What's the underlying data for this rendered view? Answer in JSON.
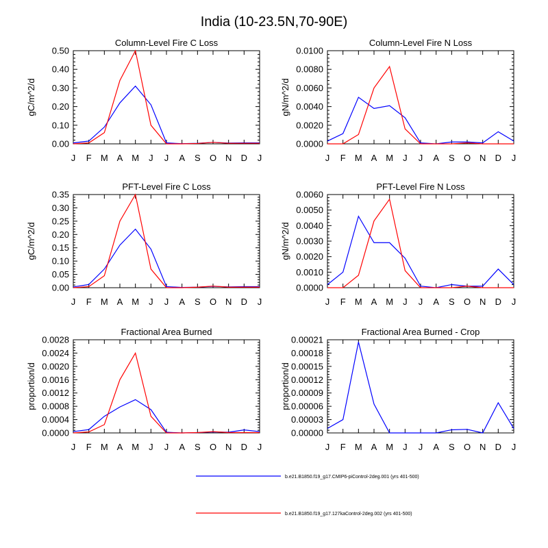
{
  "figure_title": "India (10-23.5N,70-90E)",
  "colors": {
    "blue": "#0000ff",
    "red": "#ff0000"
  },
  "legend": [
    {
      "label": "b.e21.B1850.f19_g17.CMIP6-piControl-2deg.001 (yrs 401-500)",
      "color": "#0000ff"
    },
    {
      "label": "b.e21.B1850.f19_g17.127kaControl-2deg.002 (yrs 401-500)",
      "color": "#ff0000"
    }
  ],
  "chart_data": [
    {
      "type": "line",
      "title": "Column-Level Fire C Loss",
      "ylabel": "gC/m^2/d",
      "xlabel": "",
      "categories": [
        "J",
        "F",
        "M",
        "A",
        "M",
        "J",
        "J",
        "A",
        "S",
        "O",
        "N",
        "D",
        "J"
      ],
      "ylim": [
        0,
        0.5
      ],
      "yticks": [
        "0.00",
        "0.10",
        "0.20",
        "0.30",
        "0.40",
        "0.50"
      ],
      "series": [
        {
          "name": "b.e21.B1850.f19_g17.CMIP6-piControl-2deg.001 (yrs 401-500)",
          "color": "#0000ff",
          "values": [
            0.005,
            0.015,
            0.09,
            0.22,
            0.31,
            0.21,
            0.005,
            0.001,
            0.003,
            0.008,
            0.004,
            0.005,
            0.005
          ]
        },
        {
          "name": "b.e21.B1850.f19_g17.127kaControl-2deg.002 (yrs 401-500)",
          "color": "#ff0000",
          "values": [
            0.0,
            0.005,
            0.06,
            0.34,
            0.5,
            0.1,
            0.0,
            0.0,
            0.002,
            0.008,
            0.003,
            0.003,
            0.003
          ]
        }
      ]
    },
    {
      "type": "line",
      "title": "Column-Level Fire N Loss",
      "ylabel": "gN/m^2/d",
      "xlabel": "",
      "categories": [
        "J",
        "F",
        "M",
        "A",
        "M",
        "J",
        "J",
        "A",
        "S",
        "O",
        "N",
        "D",
        "J"
      ],
      "ylim": [
        0,
        0.01
      ],
      "yticks": [
        "0.0000",
        "0.0020",
        "0.0040",
        "0.0060",
        "0.0080",
        "0.0100"
      ],
      "series": [
        {
          "name": "b.e21.B1850.f19_g17.CMIP6-piControl-2deg.001 (yrs 401-500)",
          "color": "#0000ff",
          "values": [
            0.0003,
            0.0011,
            0.005,
            0.0038,
            0.0041,
            0.0028,
            0.0001,
            0.0,
            0.0002,
            0.0002,
            0.0001,
            0.0013,
            0.0003
          ]
        },
        {
          "name": "b.e21.B1850.f19_g17.127kaControl-2deg.002 (yrs 401-500)",
          "color": "#ff0000",
          "values": [
            0.0,
            0.0,
            0.001,
            0.006,
            0.0083,
            0.0016,
            0.0,
            0.0,
            0.0,
            0.0001,
            0.0,
            0.0,
            0.0
          ]
        }
      ]
    },
    {
      "type": "line",
      "title": "PFT-Level Fire C Loss",
      "ylabel": "gC/m^2/d",
      "xlabel": "",
      "categories": [
        "J",
        "F",
        "M",
        "A",
        "M",
        "J",
        "J",
        "A",
        "S",
        "O",
        "N",
        "D",
        "J"
      ],
      "ylim": [
        0,
        0.35
      ],
      "yticks": [
        "0.00",
        "0.05",
        "0.10",
        "0.15",
        "0.20",
        "0.25",
        "0.30",
        "0.35"
      ],
      "series": [
        {
          "name": "b.e21.B1850.f19_g17.CMIP6-piControl-2deg.001 (yrs 401-500)",
          "color": "#0000ff",
          "values": [
            0.003,
            0.012,
            0.07,
            0.16,
            0.22,
            0.145,
            0.004,
            0.001,
            0.002,
            0.005,
            0.003,
            0.004,
            0.004
          ]
        },
        {
          "name": "b.e21.B1850.f19_g17.127kaControl-2deg.002 (yrs 401-500)",
          "color": "#ff0000",
          "values": [
            0.0,
            0.004,
            0.045,
            0.25,
            0.35,
            0.07,
            0.0,
            0.0,
            0.002,
            0.006,
            0.002,
            0.002,
            0.002
          ]
        }
      ]
    },
    {
      "type": "line",
      "title": "PFT-Level Fire N Loss",
      "ylabel": "gN/m^2/d",
      "xlabel": "",
      "categories": [
        "J",
        "F",
        "M",
        "A",
        "M",
        "J",
        "J",
        "A",
        "S",
        "O",
        "N",
        "D",
        "J"
      ],
      "ylim": [
        0,
        0.006
      ],
      "yticks": [
        "0.0000",
        "0.0010",
        "0.0020",
        "0.0030",
        "0.0040",
        "0.0050",
        "0.0060"
      ],
      "series": [
        {
          "name": "b.e21.B1850.f19_g17.CMIP6-piControl-2deg.001 (yrs 401-500)",
          "color": "#0000ff",
          "values": [
            0.0002,
            0.001,
            0.0046,
            0.0029,
            0.0029,
            0.0019,
            0.0001,
            0.0,
            0.0002,
            0.0001,
            0.0001,
            0.0012,
            0.0002
          ]
        },
        {
          "name": "b.e21.B1850.f19_g17.127kaControl-2deg.002 (yrs 401-500)",
          "color": "#ff0000",
          "values": [
            0.0,
            0.0,
            0.0008,
            0.0043,
            0.0057,
            0.0011,
            0.0,
            0.0,
            0.0,
            0.0001,
            0.0,
            0.0,
            0.0
          ]
        }
      ]
    },
    {
      "type": "line",
      "title": "Fractional Area Burned",
      "ylabel": "proportion/d",
      "xlabel": "",
      "categories": [
        "J",
        "F",
        "M",
        "A",
        "M",
        "J",
        "J",
        "A",
        "S",
        "O",
        "N",
        "D",
        "J"
      ],
      "ylim": [
        0,
        0.0028
      ],
      "yticks": [
        "0.0000",
        "0.0004",
        "0.0008",
        "0.0012",
        "0.0016",
        "0.0020",
        "0.0024",
        "0.0028"
      ],
      "series": [
        {
          "name": "b.e21.B1850.f19_g17.CMIP6-piControl-2deg.001 (yrs 401-500)",
          "color": "#0000ff",
          "values": [
            4e-05,
            0.0001,
            0.0005,
            0.00078,
            0.001,
            0.0007,
            2e-05,
            0.0,
            1e-05,
            3e-05,
            2e-05,
            9e-05,
            4e-05
          ]
        },
        {
          "name": "b.e21.B1850.f19_g17.127kaControl-2deg.002 (yrs 401-500)",
          "color": "#ff0000",
          "values": [
            0.0,
            3e-05,
            0.00025,
            0.0016,
            0.0024,
            0.0005,
            0.0,
            0.0,
            1e-05,
            4e-05,
            1e-05,
            1e-05,
            1e-05
          ]
        }
      ]
    },
    {
      "type": "line",
      "title": "Fractional Area Burned - Crop",
      "ylabel": "proportion/d",
      "xlabel": "",
      "categories": [
        "J",
        "F",
        "M",
        "A",
        "M",
        "J",
        "J",
        "A",
        "S",
        "O",
        "N",
        "D",
        "J"
      ],
      "ylim": [
        0,
        0.00021
      ],
      "yticks": [
        "0.00000",
        "0.00003",
        "0.00006",
        "0.00009",
        "0.00012",
        "0.00015",
        "0.00018",
        "0.00021"
      ],
      "series": [
        {
          "name": "b.e21.B1850.f19_g17.CMIP6-piControl-2deg.001 (yrs 401-500)",
          "color": "#0000ff",
          "values": [
            1e-05,
            3e-05,
            0.000205,
            6.5e-05,
            0.0,
            0.0,
            0.0,
            0.0,
            7e-06,
            8e-06,
            0.0,
            6.8e-05,
            1e-05
          ]
        }
      ]
    }
  ]
}
